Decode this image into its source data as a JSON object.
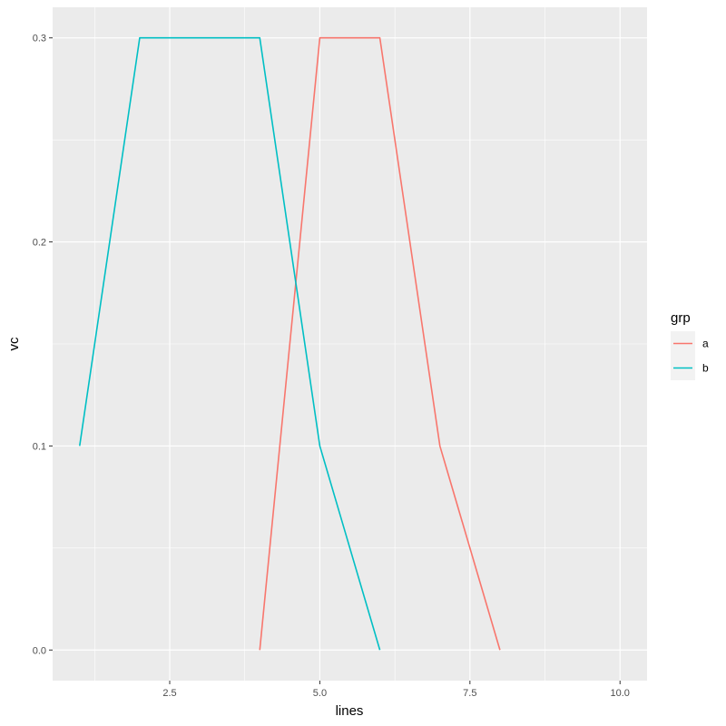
{
  "chart_data": {
    "type": "line",
    "xlabel": "lines",
    "ylabel": "vc",
    "xlim": [
      0.55,
      10.45
    ],
    "ylim": [
      -0.015,
      0.315
    ],
    "x_ticks": [
      {
        "value": 2.5,
        "label": "2.5"
      },
      {
        "value": 5.0,
        "label": "5.0"
      },
      {
        "value": 7.5,
        "label": "7.5"
      },
      {
        "value": 10.0,
        "label": "10.0"
      }
    ],
    "y_ticks": [
      {
        "value": 0.0,
        "label": "0.0"
      },
      {
        "value": 0.1,
        "label": "0.1"
      },
      {
        "value": 0.2,
        "label": "0.2"
      },
      {
        "value": 0.3,
        "label": "0.3"
      }
    ],
    "grid": true,
    "legend": {
      "title": "grp",
      "position": "right"
    },
    "series": [
      {
        "name": "a",
        "color": "#F8766D",
        "x": [
          4,
          5,
          6,
          7,
          8
        ],
        "y": [
          0.0,
          0.3,
          0.3,
          0.1,
          0.0
        ]
      },
      {
        "name": "b",
        "color": "#00BFC4",
        "x": [
          1,
          2,
          3,
          4,
          5,
          6
        ],
        "y": [
          0.1,
          0.3,
          0.3,
          0.3,
          0.1,
          0.0
        ]
      }
    ]
  }
}
